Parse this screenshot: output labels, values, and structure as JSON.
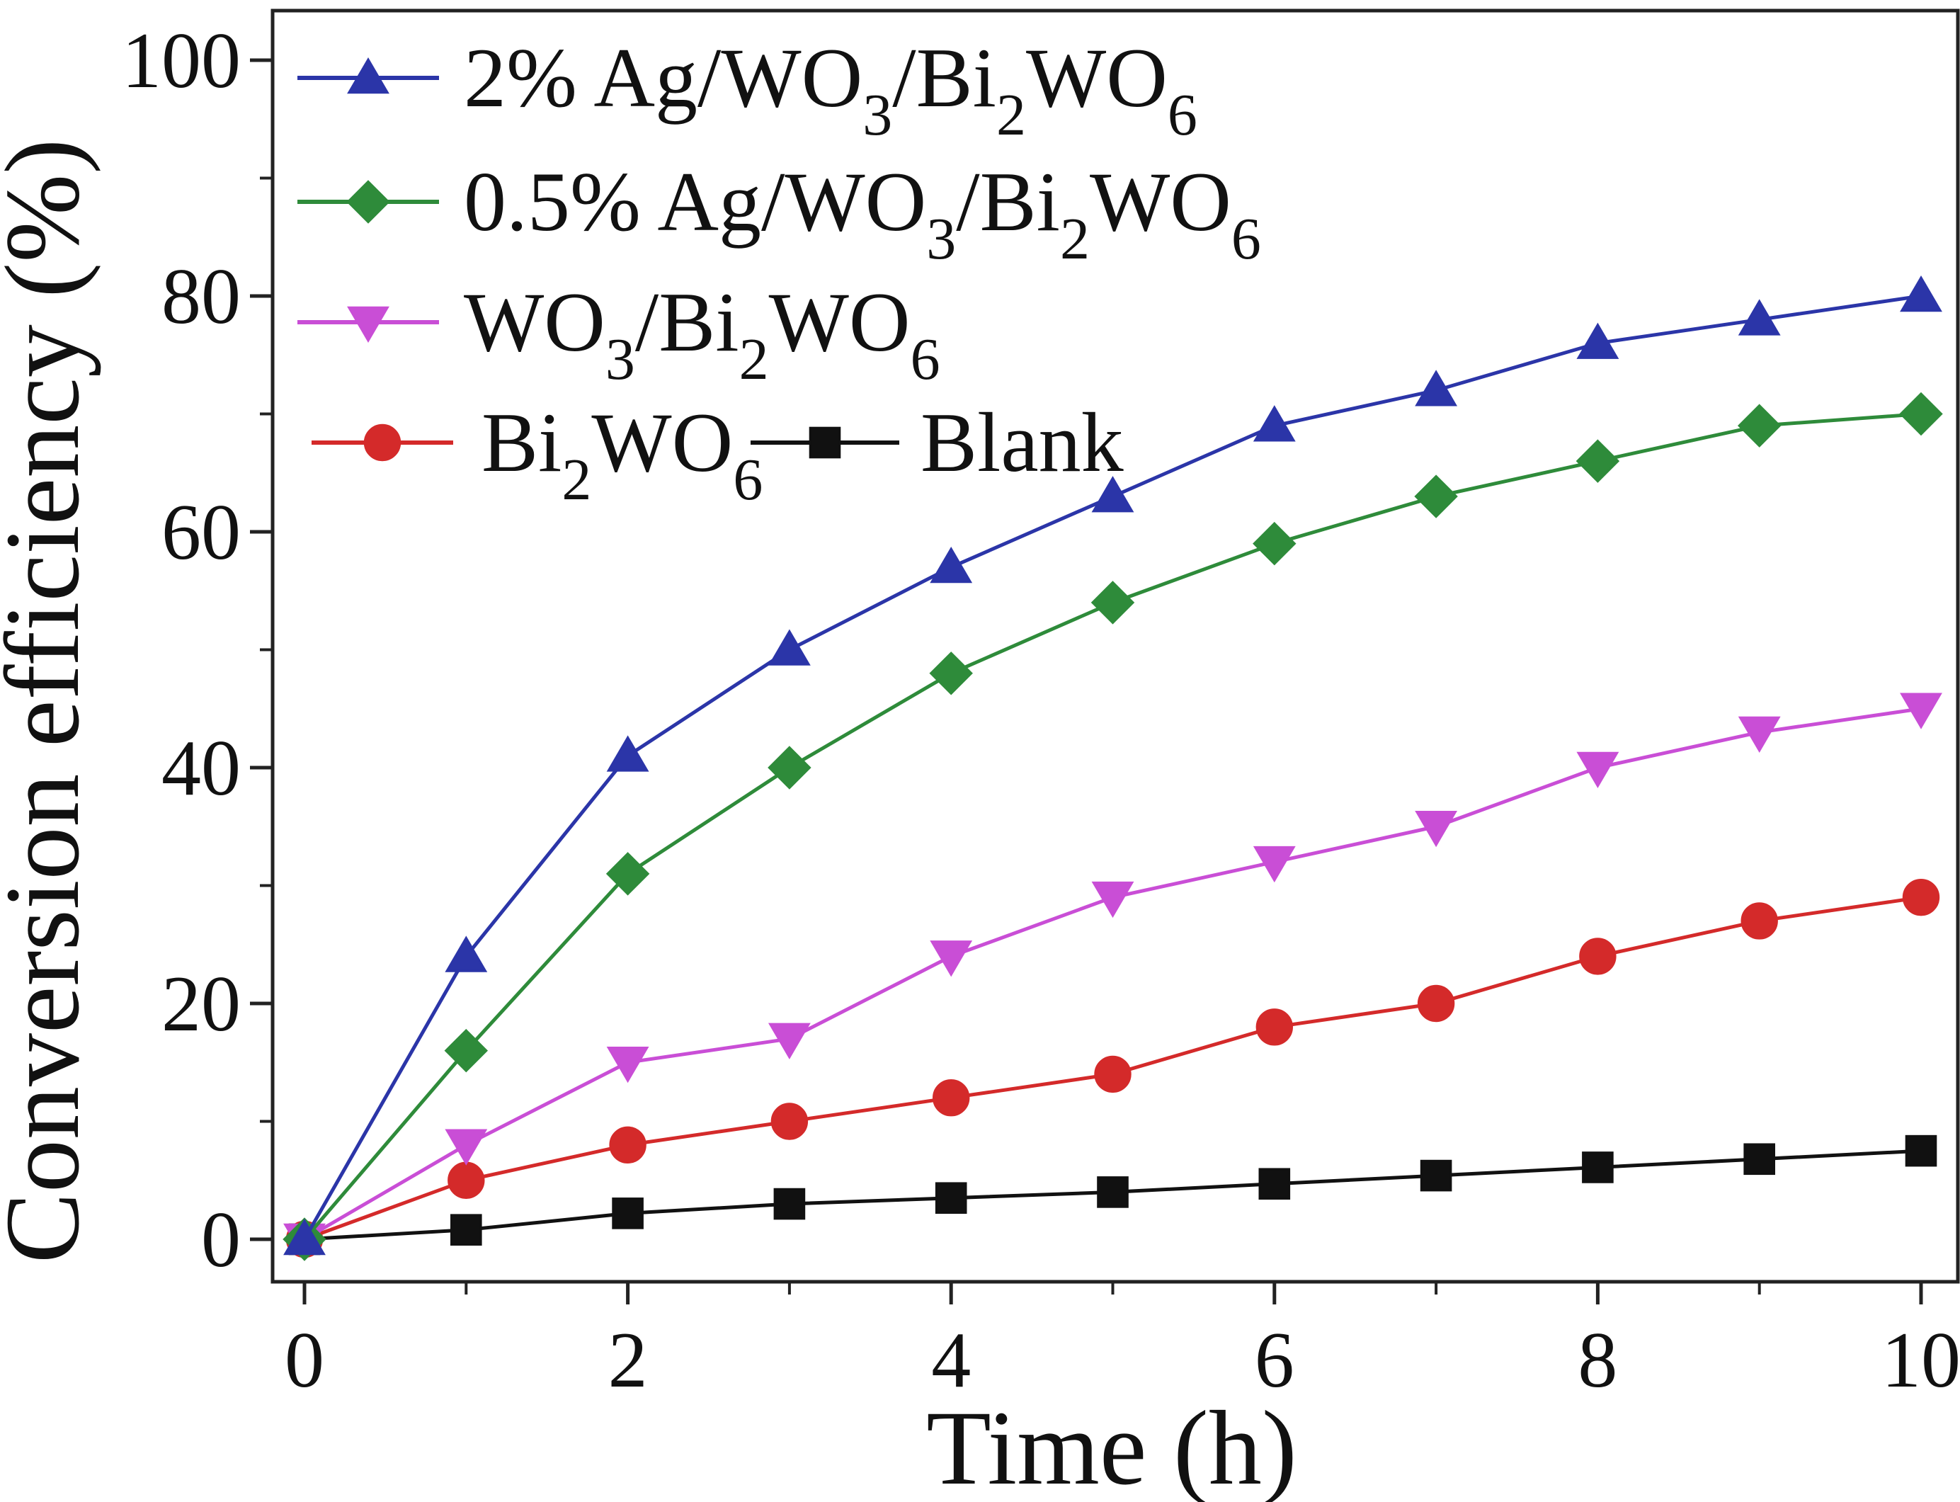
{
  "chart_data": {
    "type": "line",
    "title": "",
    "xlabel": "Time (h)",
    "ylabel": "Conversion efficiency (%)",
    "xlim": [
      0,
      10
    ],
    "ylim": [
      0,
      100
    ],
    "xticks": [
      0,
      2,
      4,
      6,
      8,
      10
    ],
    "yticks": [
      0,
      20,
      40,
      60,
      80,
      100
    ],
    "grid": false,
    "legend_position": "top-left",
    "x": [
      0,
      1,
      2,
      3,
      4,
      5,
      6,
      7,
      8,
      9,
      10
    ],
    "series": [
      {
        "name": "2% Ag/WO3/Bi2WO6",
        "label_parts": [
          {
            "t": "2% Ag/WO"
          },
          {
            "t": "3",
            "sub": true
          },
          {
            "t": "/Bi"
          },
          {
            "t": "2",
            "sub": true
          },
          {
            "t": "WO"
          },
          {
            "t": "6",
            "sub": true
          }
        ],
        "color": "#2b35a8",
        "marker": "triangle-up",
        "values": [
          0,
          24,
          41,
          50,
          57,
          63,
          69,
          72,
          76,
          78,
          80
        ]
      },
      {
        "name": "0.5% Ag/WO3/Bi2WO6",
        "label_parts": [
          {
            "t": "0.5% Ag/WO"
          },
          {
            "t": "3",
            "sub": true
          },
          {
            "t": "/Bi"
          },
          {
            "t": "2",
            "sub": true
          },
          {
            "t": "WO"
          },
          {
            "t": "6",
            "sub": true
          }
        ],
        "color": "#2e8b3a",
        "marker": "diamond",
        "values": [
          0,
          16,
          31,
          40,
          48,
          54,
          59,
          63,
          66,
          69,
          70
        ]
      },
      {
        "name": "WO3/Bi2WO6",
        "label_parts": [
          {
            "t": "WO"
          },
          {
            "t": "3",
            "sub": true
          },
          {
            "t": "/Bi"
          },
          {
            "t": "2",
            "sub": true
          },
          {
            "t": "WO"
          },
          {
            "t": "6",
            "sub": true
          }
        ],
        "color": "#c94ed6",
        "marker": "triangle-down",
        "values": [
          0,
          8,
          15,
          17,
          24,
          29,
          32,
          35,
          40,
          43,
          45
        ]
      },
      {
        "name": "Bi2WO6",
        "label_parts": [
          {
            "t": "Bi"
          },
          {
            "t": "2",
            "sub": true
          },
          {
            "t": "WO"
          },
          {
            "t": "6",
            "sub": true
          }
        ],
        "color": "#d42a2a",
        "marker": "circle",
        "values": [
          0,
          5,
          8,
          10,
          12,
          14,
          18,
          20,
          24,
          27,
          29
        ]
      },
      {
        "name": "Blank",
        "label_parts": [
          {
            "t": "Blank"
          }
        ],
        "color": "#111111",
        "marker": "square",
        "values": [
          0,
          0.8,
          2.2,
          3,
          3.5,
          4,
          4.7,
          5.4,
          6.1,
          6.8,
          7.5
        ]
      }
    ]
  }
}
